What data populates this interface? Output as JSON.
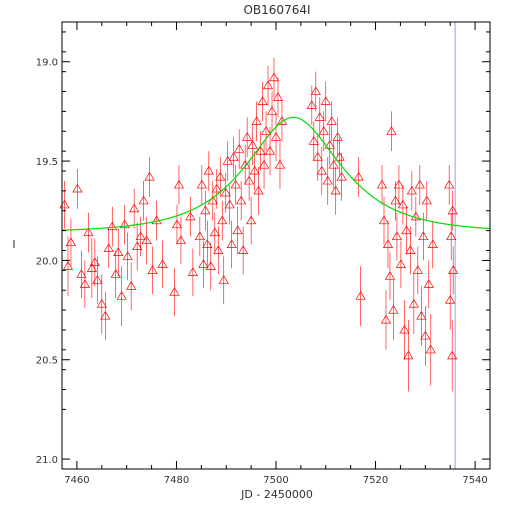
{
  "chart_data": {
    "type": "scatter",
    "title": "OB160764I",
    "xlabel": "JD - 2450000",
    "ylabel": "I",
    "xlim": [
      7457,
      7543
    ],
    "ylim": [
      21.05,
      18.8
    ],
    "y_inverted": true,
    "grid": false,
    "x_ticks": [
      7460,
      7480,
      7500,
      7520,
      7540
    ],
    "x_tick_labels": [
      "7460",
      "7480",
      "7500",
      "7520",
      "7540"
    ],
    "y_ticks": [
      19.0,
      19.5,
      20.0,
      20.5,
      21.0
    ],
    "y_tick_labels": [
      "19.0",
      "19.5",
      "20.0",
      "20.5",
      "21.0"
    ],
    "model_curve": {
      "color": "#00dd00",
      "t0": 7503.5,
      "peak_mag": 19.28,
      "baseline_mag": 19.86,
      "tE": 14
    },
    "vertical_marker": {
      "x": 7536,
      "color": "#9999ff"
    },
    "series": [
      {
        "marker": "triangle",
        "color": "#ff0000",
        "points": [
          {
            "x": 7457.5,
            "y": 19.72,
            "err": 0.12
          },
          {
            "x": 7458.2,
            "y": 20.03,
            "err": 0.15
          },
          {
            "x": 7458.8,
            "y": 19.91,
            "err": 0.12
          },
          {
            "x": 7460.1,
            "y": 19.64,
            "err": 0.1
          },
          {
            "x": 7460.9,
            "y": 20.07,
            "err": 0.12
          },
          {
            "x": 7461.6,
            "y": 20.12,
            "err": 0.12
          },
          {
            "x": 7462.3,
            "y": 19.86,
            "err": 0.1
          },
          {
            "x": 7463.0,
            "y": 20.04,
            "err": 0.15
          },
          {
            "x": 7463.6,
            "y": 20.01,
            "err": 0.12
          },
          {
            "x": 7464.1,
            "y": 20.1,
            "err": 0.12
          },
          {
            "x": 7465.0,
            "y": 20.22,
            "err": 0.15
          },
          {
            "x": 7465.7,
            "y": 20.28,
            "err": 0.12
          },
          {
            "x": 7466.4,
            "y": 19.94,
            "err": 0.1
          },
          {
            "x": 7467.1,
            "y": 19.83,
            "err": 0.1
          },
          {
            "x": 7467.8,
            "y": 20.07,
            "err": 0.12
          },
          {
            "x": 7468.3,
            "y": 19.96,
            "err": 0.12
          },
          {
            "x": 7469.0,
            "y": 20.18,
            "err": 0.15
          },
          {
            "x": 7469.6,
            "y": 19.82,
            "err": 0.1
          },
          {
            "x": 7470.2,
            "y": 19.98,
            "err": 0.12
          },
          {
            "x": 7470.9,
            "y": 20.13,
            "err": 0.12
          },
          {
            "x": 7471.5,
            "y": 19.74,
            "err": 0.1
          },
          {
            "x": 7472.1,
            "y": 19.93,
            "err": 0.12
          },
          {
            "x": 7472.8,
            "y": 19.88,
            "err": 0.1
          },
          {
            "x": 7473.4,
            "y": 19.7,
            "err": 0.1
          },
          {
            "x": 7474.0,
            "y": 19.9,
            "err": 0.12
          },
          {
            "x": 7474.6,
            "y": 19.58,
            "err": 0.1
          },
          {
            "x": 7475.2,
            "y": 20.05,
            "err": 0.12
          },
          {
            "x": 7476.0,
            "y": 19.8,
            "err": 0.1
          },
          {
            "x": 7477.2,
            "y": 20.02,
            "err": 0.12
          },
          {
            "x": 7479.6,
            "y": 20.16,
            "err": 0.12
          },
          {
            "x": 7480.1,
            "y": 19.82,
            "err": 0.1
          },
          {
            "x": 7480.5,
            "y": 19.62,
            "err": 0.1
          },
          {
            "x": 7480.9,
            "y": 19.9,
            "err": 0.12
          },
          {
            "x": 7482.8,
            "y": 19.78,
            "err": 0.1
          },
          {
            "x": 7483.3,
            "y": 20.06,
            "err": 0.12
          },
          {
            "x": 7484.7,
            "y": 19.88,
            "err": 0.1
          },
          {
            "x": 7485.1,
            "y": 19.62,
            "err": 0.1
          },
          {
            "x": 7485.4,
            "y": 20.02,
            "err": 0.12
          },
          {
            "x": 7485.8,
            "y": 19.75,
            "err": 0.1
          },
          {
            "x": 7486.2,
            "y": 19.92,
            "err": 0.12
          },
          {
            "x": 7486.5,
            "y": 19.55,
            "err": 0.1
          },
          {
            "x": 7486.9,
            "y": 20.03,
            "err": 0.12
          },
          {
            "x": 7487.3,
            "y": 19.7,
            "err": 0.1
          },
          {
            "x": 7487.7,
            "y": 19.86,
            "err": 0.1
          },
          {
            "x": 7488.1,
            "y": 19.64,
            "err": 0.1
          },
          {
            "x": 7488.4,
            "y": 19.95,
            "err": 0.12
          },
          {
            "x": 7488.8,
            "y": 19.58,
            "err": 0.1
          },
          {
            "x": 7489.2,
            "y": 19.8,
            "err": 0.1
          },
          {
            "x": 7489.5,
            "y": 20.1,
            "err": 0.12
          },
          {
            "x": 7489.9,
            "y": 19.66,
            "err": 0.1
          },
          {
            "x": 7490.3,
            "y": 19.5,
            "err": 0.1
          },
          {
            "x": 7490.7,
            "y": 19.72,
            "err": 0.1
          },
          {
            "x": 7491.1,
            "y": 19.92,
            "err": 0.12
          },
          {
            "x": 7491.5,
            "y": 19.48,
            "err": 0.1
          },
          {
            "x": 7491.9,
            "y": 19.62,
            "err": 0.1
          },
          {
            "x": 7492.3,
            "y": 19.85,
            "err": 0.12
          },
          {
            "x": 7492.6,
            "y": 19.44,
            "err": 0.1
          },
          {
            "x": 7493.0,
            "y": 19.7,
            "err": 0.1
          },
          {
            "x": 7493.4,
            "y": 19.95,
            "err": 0.12
          },
          {
            "x": 7493.8,
            "y": 19.52,
            "err": 0.1
          },
          {
            "x": 7494.2,
            "y": 19.38,
            "err": 0.1
          },
          {
            "x": 7494.6,
            "y": 19.6,
            "err": 0.1
          },
          {
            "x": 7495.0,
            "y": 19.8,
            "err": 0.12
          },
          {
            "x": 7495.3,
            "y": 19.42,
            "err": 0.1
          },
          {
            "x": 7495.7,
            "y": 19.55,
            "err": 0.1
          },
          {
            "x": 7496.1,
            "y": 19.3,
            "err": 0.1
          },
          {
            "x": 7496.5,
            "y": 19.65,
            "err": 0.12
          },
          {
            "x": 7496.9,
            "y": 19.45,
            "err": 0.1
          },
          {
            "x": 7497.3,
            "y": 19.2,
            "err": 0.1
          },
          {
            "x": 7497.6,
            "y": 19.52,
            "err": 0.12
          },
          {
            "x": 7498.0,
            "y": 19.35,
            "err": 0.1
          },
          {
            "x": 7498.4,
            "y": 19.12,
            "err": 0.1
          },
          {
            "x": 7498.8,
            "y": 19.45,
            "err": 0.12
          },
          {
            "x": 7499.2,
            "y": 19.25,
            "err": 0.1
          },
          {
            "x": 7499.6,
            "y": 19.08,
            "err": 0.1
          },
          {
            "x": 7500.0,
            "y": 19.38,
            "err": 0.12
          },
          {
            "x": 7500.4,
            "y": 19.18,
            "err": 0.1
          },
          {
            "x": 7500.8,
            "y": 19.52,
            "err": 0.12
          },
          {
            "x": 7501.2,
            "y": 19.3,
            "err": 0.1
          },
          {
            "x": 7507.2,
            "y": 19.22,
            "err": 0.1
          },
          {
            "x": 7507.6,
            "y": 19.4,
            "err": 0.1
          },
          {
            "x": 7508.0,
            "y": 19.15,
            "err": 0.1
          },
          {
            "x": 7508.4,
            "y": 19.48,
            "err": 0.12
          },
          {
            "x": 7508.8,
            "y": 19.28,
            "err": 0.1
          },
          {
            "x": 7509.2,
            "y": 19.55,
            "err": 0.12
          },
          {
            "x": 7509.6,
            "y": 19.35,
            "err": 0.1
          },
          {
            "x": 7510.0,
            "y": 19.2,
            "err": 0.1
          },
          {
            "x": 7510.4,
            "y": 19.6,
            "err": 0.12
          },
          {
            "x": 7510.8,
            "y": 19.42,
            "err": 0.1
          },
          {
            "x": 7511.2,
            "y": 19.3,
            "err": 0.1
          },
          {
            "x": 7511.6,
            "y": 19.52,
            "err": 0.12
          },
          {
            "x": 7512.0,
            "y": 19.65,
            "err": 0.12
          },
          {
            "x": 7512.4,
            "y": 19.38,
            "err": 0.1
          },
          {
            "x": 7512.8,
            "y": 19.48,
            "err": 0.1
          },
          {
            "x": 7513.2,
            "y": 19.58,
            "err": 0.12
          },
          {
            "x": 7516.6,
            "y": 19.58,
            "err": 0.1
          },
          {
            "x": 7517.0,
            "y": 20.18,
            "err": 0.15
          },
          {
            "x": 7521.3,
            "y": 19.62,
            "err": 0.1
          },
          {
            "x": 7521.7,
            "y": 19.8,
            "err": 0.12
          },
          {
            "x": 7522.1,
            "y": 20.3,
            "err": 0.15
          },
          {
            "x": 7522.5,
            "y": 19.92,
            "err": 0.12
          },
          {
            "x": 7522.9,
            "y": 20.08,
            "err": 0.12
          },
          {
            "x": 7523.2,
            "y": 19.35,
            "err": 0.1
          },
          {
            "x": 7523.6,
            "y": 20.25,
            "err": 0.15
          },
          {
            "x": 7524.0,
            "y": 19.7,
            "err": 0.1
          },
          {
            "x": 7524.3,
            "y": 19.88,
            "err": 0.12
          },
          {
            "x": 7524.7,
            "y": 19.62,
            "err": 0.1
          },
          {
            "x": 7525.1,
            "y": 20.02,
            "err": 0.12
          },
          {
            "x": 7525.5,
            "y": 19.72,
            "err": 0.1
          },
          {
            "x": 7525.8,
            "y": 20.35,
            "err": 0.15
          },
          {
            "x": 7526.2,
            "y": 19.85,
            "err": 0.12
          },
          {
            "x": 7526.6,
            "y": 20.48,
            "err": 0.18
          },
          {
            "x": 7527.0,
            "y": 19.95,
            "err": 0.12
          },
          {
            "x": 7527.3,
            "y": 19.65,
            "err": 0.1
          },
          {
            "x": 7527.7,
            "y": 20.22,
            "err": 0.15
          },
          {
            "x": 7528.1,
            "y": 19.78,
            "err": 0.1
          },
          {
            "x": 7528.5,
            "y": 20.05,
            "err": 0.12
          },
          {
            "x": 7528.9,
            "y": 19.62,
            "err": 0.1
          },
          {
            "x": 7529.2,
            "y": 20.28,
            "err": 0.15
          },
          {
            "x": 7529.6,
            "y": 19.88,
            "err": 0.12
          },
          {
            "x": 7530.0,
            "y": 20.38,
            "err": 0.15
          },
          {
            "x": 7530.3,
            "y": 19.7,
            "err": 0.1
          },
          {
            "x": 7530.7,
            "y": 20.12,
            "err": 0.12
          },
          {
            "x": 7531.1,
            "y": 20.45,
            "err": 0.18
          },
          {
            "x": 7531.5,
            "y": 19.92,
            "err": 0.12
          },
          {
            "x": 7534.8,
            "y": 19.62,
            "err": 0.1
          },
          {
            "x": 7535.0,
            "y": 20.2,
            "err": 0.15
          },
          {
            "x": 7535.2,
            "y": 19.88,
            "err": 0.12
          },
          {
            "x": 7535.4,
            "y": 20.48,
            "err": 0.18
          },
          {
            "x": 7535.5,
            "y": 19.75,
            "err": 0.1
          },
          {
            "x": 7535.6,
            "y": 20.05,
            "err": 0.12
          }
        ]
      }
    ]
  }
}
